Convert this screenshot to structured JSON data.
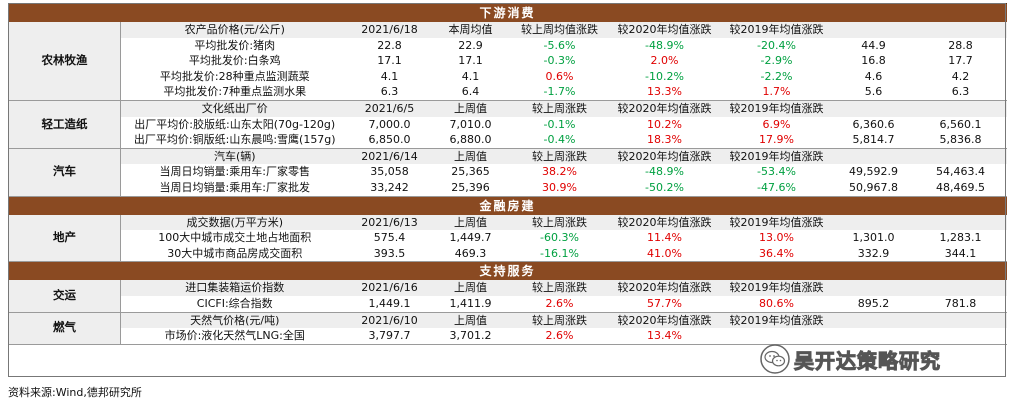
{
  "sections": {
    "downstream": "下游消费",
    "finance": "金融房建",
    "support": "支持服务"
  },
  "categories": {
    "agri": "农林牧渔",
    "light": "轻工造纸",
    "auto": "汽车",
    "estate": "地产",
    "transport": "交运",
    "gas": "燃气"
  },
  "agri": {
    "header": [
      "农产品价格(元/公斤)",
      "2021/6/18",
      "本周均值",
      "较上周均值涨跌",
      "较2020年均值涨跌",
      "较2019年均值涨跌",
      "",
      ""
    ],
    "rows": [
      [
        "平均批发价:猪肉",
        "22.8",
        "22.9",
        "-5.6%",
        "-48.9%",
        "-20.4%",
        "44.9",
        "28.8"
      ],
      [
        "平均批发价:白条鸡",
        "17.1",
        "17.1",
        "-0.3%",
        "2.0%",
        "-2.9%",
        "16.8",
        "17.7"
      ],
      [
        "平均批发价:28种重点监测蔬菜",
        "4.1",
        "4.1",
        "0.6%",
        "-10.2%",
        "-2.2%",
        "4.6",
        "4.2"
      ],
      [
        "平均批发价:7种重点监测水果",
        "6.3",
        "6.4",
        "-1.7%",
        "13.3%",
        "1.7%",
        "5.6",
        "6.3"
      ]
    ]
  },
  "light": {
    "header": [
      "文化纸出厂价",
      "2021/6/5",
      "上周值",
      "较上周涨跌",
      "较2020年均值涨跌",
      "较2019年均值涨跌",
      "",
      ""
    ],
    "rows": [
      [
        "出厂平均价:胶版纸:山东太阳(70g-120g)",
        "7,000.0",
        "7,010.0",
        "-0.1%",
        "10.2%",
        "6.9%",
        "6,360.6",
        "6,560.1"
      ],
      [
        "出厂平均价:铜版纸:山东晨鸣:雪鹰(157g)",
        "6,850.0",
        "6,880.0",
        "-0.4%",
        "18.3%",
        "17.9%",
        "5,814.7",
        "5,836.8"
      ]
    ]
  },
  "auto": {
    "header": [
      "汽车(辆)",
      "2021/6/14",
      "上周值",
      "较上周涨跌",
      "较2020年均值涨跌",
      "较2019年均值涨跌",
      "",
      ""
    ],
    "rows": [
      [
        "当周日均销量:乘用车:厂家零售",
        "35,058",
        "25,365",
        "38.2%",
        "-48.9%",
        "-53.4%",
        "49,592.9",
        "54,463.4"
      ],
      [
        "当周日均销量:乘用车:厂家批发",
        "33,242",
        "25,396",
        "30.9%",
        "-50.2%",
        "-47.6%",
        "50,967.8",
        "48,469.5"
      ]
    ]
  },
  "estate": {
    "header": [
      "成交数据(万平方米)",
      "2021/6/13",
      "上周值",
      "较上周涨跌",
      "较2020年均值涨跌",
      "较2019年均值涨跌",
      "",
      ""
    ],
    "rows": [
      [
        "100大中城市成交土地占地面积",
        "575.4",
        "1,449.7",
        "-60.3%",
        "11.4%",
        "13.0%",
        "1,301.0",
        "1,283.1"
      ],
      [
        "30大中城市商品房成交面积",
        "393.5",
        "469.3",
        "-16.1%",
        "41.0%",
        "36.4%",
        "332.9",
        "344.1"
      ]
    ]
  },
  "transport": {
    "header": [
      "进口集装箱运价指数",
      "2021/6/16",
      "上周值",
      "较上周涨跌",
      "较2020年均值涨跌",
      "较2019年均值涨跌",
      "",
      ""
    ],
    "rows": [
      [
        "CICFI:综合指数",
        "1,449.1",
        "1,411.9",
        "2.6%",
        "57.7%",
        "80.6%",
        "895.2",
        "781.8"
      ]
    ]
  },
  "gas": {
    "header": [
      "天然气价格(元/吨)",
      "2021/6/10",
      "上周值",
      "较上周涨跌",
      "较2020年均值涨跌",
      "较2019年均值涨跌",
      "",
      ""
    ],
    "rows": [
      [
        "市场价:液化天然气LNG:全国",
        "3,797.7",
        "3,701.2",
        "2.6%",
        "13.4%",
        "",
        "",
        ""
      ]
    ]
  },
  "source": "资料来源:Wind,德邦研究所",
  "watermark": "吴开达策略研究",
  "colors": {
    "section_bg": "#8a4a22",
    "positive": "#e00000",
    "negative": "#00a040",
    "header_bg": "#eeeeee"
  }
}
